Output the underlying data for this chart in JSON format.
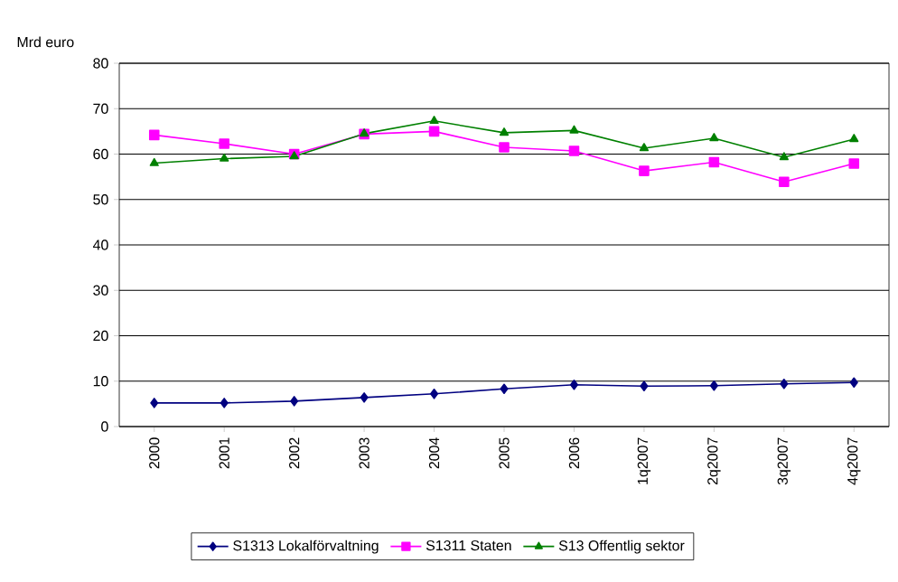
{
  "chart_data": {
    "type": "line",
    "ylabel": "Mrd euro",
    "categories": [
      "2000",
      "2001",
      "2002",
      "2003",
      "2004",
      "2005",
      "2006",
      "1q2007",
      "2q2007",
      "3q2007",
      "4q2007"
    ],
    "series": [
      {
        "name": "S1313 Lokalförvaltning",
        "color": "#000080",
        "marker": "diamond",
        "values": [
          5.2,
          5.2,
          5.6,
          6.4,
          7.2,
          8.3,
          9.2,
          8.9,
          9.0,
          9.4,
          9.7
        ]
      },
      {
        "name": "S1311 Staten",
        "color": "#ff00ff",
        "marker": "square",
        "values": [
          64.2,
          62.3,
          60.0,
          64.4,
          65.0,
          61.5,
          60.7,
          56.3,
          58.2,
          53.9,
          57.9
        ]
      },
      {
        "name": "S13 Offentlig sektor",
        "color": "#008000",
        "marker": "triangle",
        "values": [
          58.0,
          59.0,
          59.5,
          64.5,
          67.3,
          64.7,
          65.2,
          61.3,
          63.5,
          59.3,
          63.3
        ]
      }
    ],
    "ylim": [
      0,
      80
    ],
    "yticks": [
      0,
      10,
      20,
      30,
      40,
      50,
      60,
      70,
      80
    ],
    "grid": "y",
    "legend": "bottom"
  }
}
